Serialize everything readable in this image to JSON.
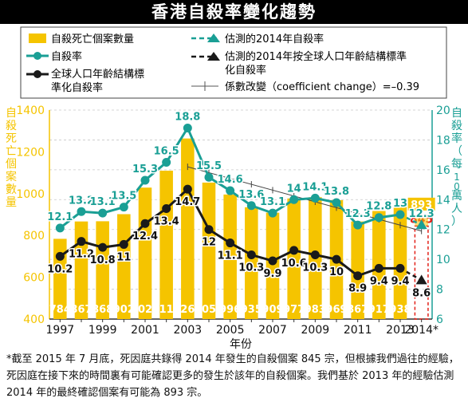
{
  "chart_data": {
    "type": "bar+line",
    "title": "香港自殺率變化趨勢",
    "xlabel": "年份",
    "ylabel_left": "自殺死亡個案數量",
    "ylabel_right": "自殺率（每10萬人）",
    "ylim_left": [
      400,
      1400
    ],
    "ylim_right": [
      6,
      20
    ],
    "yticks_left": [
      400,
      600,
      800,
      1000,
      1200,
      1400
    ],
    "yticks_right": [
      6,
      8,
      10,
      12,
      14,
      16,
      18,
      20
    ],
    "categories": [
      1997,
      1998,
      1999,
      2000,
      2001,
      2002,
      2003,
      2004,
      2005,
      2006,
      2007,
      2008,
      2009,
      2010,
      2011,
      2012,
      2013,
      2014
    ],
    "xtick_labels": [
      "1997",
      "",
      "1999",
      "",
      "2001",
      "",
      "2003",
      "",
      "2005",
      "",
      "2007",
      "",
      "2009",
      "",
      "2011",
      "",
      "2013",
      "2014*"
    ],
    "legend_position": "top",
    "legend": {
      "bars": "自殺死亡個案數量",
      "rate": "自殺率",
      "std_rate": "全球人口年齡結構標準化自殺率",
      "est_rate": "估測的2014年自殺率",
      "est_std_rate": "估測的2014年按全球人口年齡結構標準化自殺率",
      "trend": "係數改變（coefficient change）=–0.39"
    },
    "series": [
      {
        "name": "自殺死亡個案數量",
        "type": "bar",
        "axis": "left",
        "values": [
          784,
          867,
          868,
          902,
          1029,
          1110,
          1264,
          1053,
          996,
          935,
          909,
          977,
          983,
          969,
          867,
          917,
          938,
          845
        ],
        "estimated_2014": 893
      },
      {
        "name": "自殺率",
        "type": "line",
        "axis": "right",
        "values": [
          12.1,
          13.2,
          13.1,
          13.5,
          15.3,
          16.5,
          18.8,
          15.5,
          14.6,
          13.6,
          13.1,
          14,
          14.1,
          13.8,
          12.3,
          12.8,
          13,
          null
        ],
        "estimated_2014": 12.3
      },
      {
        "name": "全球人口年齡結構標準化自殺率",
        "type": "line",
        "axis": "right",
        "values": [
          10.2,
          11.2,
          10.8,
          11,
          12.4,
          13.4,
          14.7,
          12,
          11.1,
          10.3,
          9.9,
          10.6,
          10.3,
          10,
          8.9,
          9.4,
          9.4,
          null
        ],
        "estimated_2014": 8.6
      },
      {
        "name": "係數改變",
        "type": "trend",
        "axis": "right",
        "x": [
          2003,
          2014
        ],
        "values": [
          16.2,
          11.9
        ]
      }
    ],
    "colors": {
      "bar": "#f5c400",
      "rate": "#1a9f95",
      "std": "#1a1a1a",
      "est_bar_outline": "#e32119",
      "est_bar_label": "#e32119"
    }
  },
  "footnote": "*截至 2015 年 7 月底，死因庭共錄得 2014 年發生的自殺個案 845 宗，但根據我們過往的經驗，死因庭在接下來的時間裏有可能確認更多的發生於該年的自殺個案。我們基於 2013 年的經驗估測 2014 年的最終確認個案有可能為 893 宗。"
}
